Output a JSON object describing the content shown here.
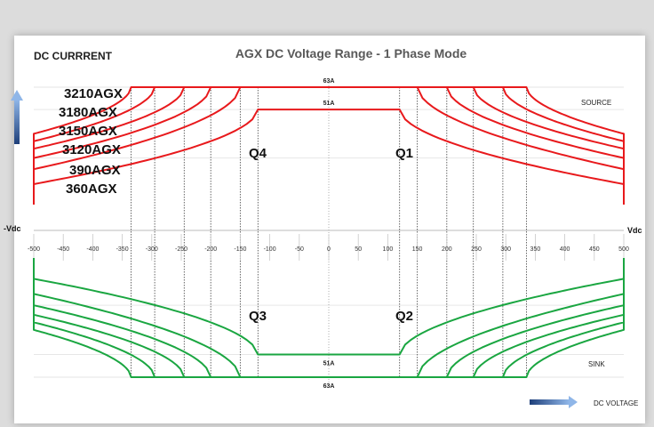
{
  "chart_data": {
    "type": "line",
    "title": "AGX DC Voltage Range - 1 Phase Mode",
    "ylabel": "DC CURRRENT",
    "xlabel": "DC VOLTAGE",
    "x_neg_label": "-Vdc",
    "x_pos_label": "Vdc",
    "xlim": [
      -500,
      500
    ],
    "x_ticks": [
      -500,
      -450,
      -400,
      -350,
      -300,
      -250,
      -200,
      -150,
      -100,
      -50,
      0,
      50,
      100,
      150,
      200,
      250,
      300,
      350,
      400,
      450,
      500
    ],
    "current_levels": [
      {
        "label": "63A",
        "value": 63,
        "region": "source"
      },
      {
        "label": "51A",
        "value": 51,
        "region": "source"
      },
      {
        "label": "51A",
        "value": -51,
        "region": "sink"
      },
      {
        "label": "63A",
        "value": -63,
        "region": "sink"
      }
    ],
    "region_labels": {
      "source": "SOURCE",
      "sink": "SINK"
    },
    "quadrants": [
      "Q4",
      "Q1",
      "Q3",
      "Q2"
    ],
    "series": [
      {
        "name": "3210AGX",
        "color": "#e8191c",
        "flat_limit_v": 335,
        "max_current": 63,
        "current_at_500": 38
      },
      {
        "name": "3180AGX",
        "color": "#e8191c",
        "flat_limit_v": 295,
        "max_current": 63,
        "current_at_500": 34
      },
      {
        "name": "3150AGX",
        "color": "#e8191c",
        "flat_limit_v": 245,
        "max_current": 63,
        "current_at_500": 30
      },
      {
        "name": "3120AGX",
        "color": "#e8191c",
        "flat_limit_v": 200,
        "max_current": 63,
        "current_at_500": 25
      },
      {
        "name": "390AGX",
        "color": "#e8191c",
        "flat_limit_v": 150,
        "max_current": 63,
        "current_at_500": 19
      },
      {
        "name": "360AGX",
        "color": "#e8191c",
        "flat_limit_v": 120,
        "max_current": 51,
        "current_at_500": 11
      }
    ],
    "source_color": "#e8191c",
    "sink_color": "#1aa641",
    "legend": "left"
  }
}
